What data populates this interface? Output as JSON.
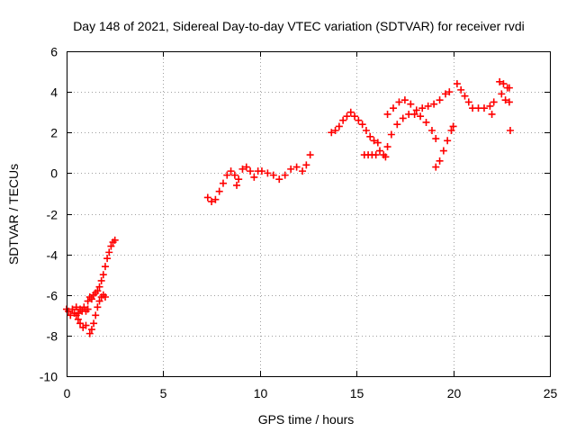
{
  "chart_data": {
    "type": "scatter",
    "title": "Day 148 of 2021, Sidereal Day-to-day VTEC variation (SDTVAR) for receiver rvdi",
    "xlabel": "GPS time / hours",
    "ylabel": "SDTVAR / TECUs",
    "xlim": [
      0,
      25
    ],
    "ylim": [
      -10,
      6
    ],
    "xticks": [
      0,
      5,
      10,
      15,
      20,
      25
    ],
    "yticks": [
      -10,
      -8,
      -6,
      -4,
      -2,
      0,
      2,
      4,
      6
    ],
    "grid": true,
    "legend": "none",
    "marker": "plus",
    "color": "#ff0000",
    "series": [
      {
        "values": [
          [
            0.0,
            -6.7
          ],
          [
            0.1,
            -6.8
          ],
          [
            0.2,
            -7.0
          ],
          [
            0.3,
            -6.7
          ],
          [
            0.4,
            -6.9
          ],
          [
            0.5,
            -6.6
          ],
          [
            0.6,
            -6.9
          ],
          [
            0.7,
            -6.7
          ],
          [
            0.8,
            -6.8
          ],
          [
            0.9,
            -6.6
          ],
          [
            1.0,
            -6.8
          ],
          [
            1.1,
            -6.7
          ],
          [
            0.5,
            -7.0
          ],
          [
            0.6,
            -7.2
          ],
          [
            0.7,
            -7.4
          ],
          [
            0.85,
            -7.6
          ],
          [
            1.0,
            -7.5
          ],
          [
            1.1,
            -6.3
          ],
          [
            1.2,
            -6.1
          ],
          [
            1.3,
            -6.2
          ],
          [
            1.4,
            -6.0
          ],
          [
            1.5,
            -5.9
          ],
          [
            1.6,
            -5.8
          ],
          [
            1.7,
            -5.6
          ],
          [
            1.8,
            -5.3
          ],
          [
            1.9,
            -5.0
          ],
          [
            2.0,
            -4.6
          ],
          [
            2.1,
            -4.2
          ],
          [
            2.2,
            -3.9
          ],
          [
            2.3,
            -3.6
          ],
          [
            2.4,
            -3.4
          ],
          [
            2.5,
            -3.3
          ],
          [
            1.2,
            -7.9
          ],
          [
            1.3,
            -7.7
          ],
          [
            1.4,
            -7.4
          ],
          [
            1.5,
            -7.0
          ],
          [
            1.6,
            -6.6
          ],
          [
            1.7,
            -6.3
          ],
          [
            1.8,
            -6.1
          ],
          [
            1.9,
            -6.0
          ],
          [
            2.0,
            -6.1
          ],
          [
            7.3,
            -1.2
          ],
          [
            7.5,
            -1.4
          ],
          [
            7.7,
            -1.3
          ],
          [
            7.9,
            -0.9
          ],
          [
            8.1,
            -0.5
          ],
          [
            8.3,
            -0.1
          ],
          [
            8.5,
            0.1
          ],
          [
            8.7,
            -0.1
          ],
          [
            8.8,
            -0.6
          ],
          [
            8.9,
            -0.3
          ],
          [
            9.1,
            0.2
          ],
          [
            9.3,
            0.3
          ],
          [
            9.5,
            0.1
          ],
          [
            9.7,
            -0.2
          ],
          [
            9.9,
            0.1
          ],
          [
            10.1,
            0.1
          ],
          [
            10.4,
            0.0
          ],
          [
            10.7,
            -0.1
          ],
          [
            11.0,
            -0.3
          ],
          [
            11.3,
            -0.1
          ],
          [
            11.6,
            0.2
          ],
          [
            11.9,
            0.3
          ],
          [
            12.2,
            0.1
          ],
          [
            12.4,
            0.4
          ],
          [
            12.6,
            0.9
          ],
          [
            13.7,
            2.0
          ],
          [
            13.9,
            2.1
          ],
          [
            14.1,
            2.3
          ],
          [
            14.3,
            2.6
          ],
          [
            14.5,
            2.8
          ],
          [
            14.7,
            3.0
          ],
          [
            14.9,
            2.8
          ],
          [
            15.1,
            2.6
          ],
          [
            15.3,
            2.4
          ],
          [
            15.5,
            2.1
          ],
          [
            15.7,
            1.8
          ],
          [
            15.9,
            1.6
          ],
          [
            16.1,
            1.5
          ],
          [
            15.4,
            0.9
          ],
          [
            15.6,
            0.9
          ],
          [
            15.8,
            0.9
          ],
          [
            16.0,
            0.9
          ],
          [
            16.2,
            1.1
          ],
          [
            16.4,
            0.9
          ],
          [
            16.5,
            0.8
          ],
          [
            16.6,
            1.3
          ],
          [
            16.8,
            1.9
          ],
          [
            17.1,
            2.4
          ],
          [
            17.4,
            2.7
          ],
          [
            17.7,
            2.9
          ],
          [
            18.0,
            2.9
          ],
          [
            18.3,
            2.8
          ],
          [
            18.6,
            2.5
          ],
          [
            18.9,
            2.1
          ],
          [
            19.1,
            1.7
          ],
          [
            16.6,
            2.9
          ],
          [
            16.9,
            3.2
          ],
          [
            17.2,
            3.5
          ],
          [
            17.5,
            3.6
          ],
          [
            17.8,
            3.4
          ],
          [
            18.1,
            3.1
          ],
          [
            18.4,
            3.2
          ],
          [
            18.7,
            3.3
          ],
          [
            19.0,
            3.4
          ],
          [
            19.3,
            3.6
          ],
          [
            19.6,
            3.9
          ],
          [
            19.8,
            4.0
          ],
          [
            19.1,
            0.3
          ],
          [
            19.3,
            0.6
          ],
          [
            19.5,
            1.1
          ],
          [
            19.7,
            1.6
          ],
          [
            19.9,
            2.1
          ],
          [
            20.0,
            2.3
          ],
          [
            20.2,
            4.4
          ],
          [
            20.4,
            4.1
          ],
          [
            20.6,
            3.8
          ],
          [
            20.8,
            3.5
          ],
          [
            21.0,
            3.2
          ],
          [
            21.3,
            3.2
          ],
          [
            21.6,
            3.2
          ],
          [
            21.9,
            3.3
          ],
          [
            22.1,
            3.5
          ],
          [
            22.0,
            2.9
          ],
          [
            22.4,
            4.5
          ],
          [
            22.6,
            4.4
          ],
          [
            22.8,
            4.2
          ],
          [
            22.9,
            4.2
          ],
          [
            22.5,
            3.9
          ],
          [
            22.7,
            3.6
          ],
          [
            22.9,
            3.5
          ],
          [
            22.95,
            2.1
          ]
        ]
      }
    ]
  }
}
